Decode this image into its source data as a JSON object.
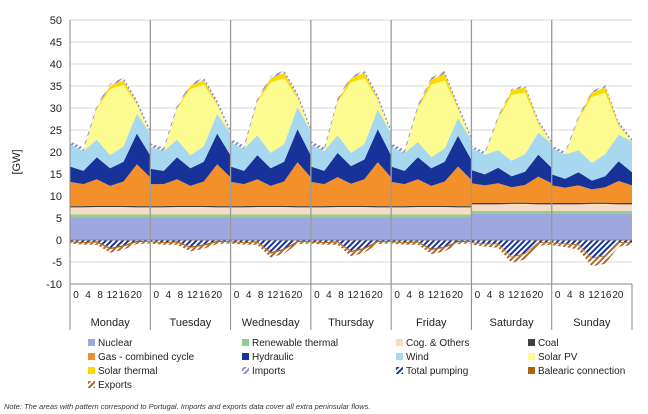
{
  "chart_data": {
    "type": "area",
    "ylabel": "[GW]",
    "ylim": [
      -10,
      50
    ],
    "yticks": [
      -10,
      -5,
      0,
      5,
      10,
      15,
      20,
      25,
      30,
      35,
      40,
      45,
      50
    ],
    "grid": "horizontal",
    "legend_placement": "bottom",
    "days": [
      "Monday",
      "Tuesday",
      "Wednesday",
      "Thursday",
      "Friday",
      "Saturday",
      "Sunday"
    ],
    "hour_ticks": [
      "0",
      "4",
      "8",
      "12",
      "16",
      "20"
    ],
    "series": [
      {
        "name": "Nuclear",
        "color": "#9fa8de",
        "pattern": false,
        "values": [
          [
            5.2,
            5.2,
            5.2,
            5.2,
            5.2,
            5.2,
            5.2
          ],
          [
            5.2,
            5.2,
            5.2,
            5.2,
            5.2,
            5.2,
            5.2
          ],
          [
            5.2,
            5.2,
            5.2,
            5.2,
            5.2,
            5.2,
            5.2
          ],
          [
            5.2,
            5.2,
            5.2,
            5.2,
            5.2,
            5.2,
            5.2
          ],
          [
            5.2,
            5.2,
            5.2,
            5.2,
            5.2,
            5.2,
            5.2
          ],
          [
            6.0,
            6.0,
            6.0,
            6.0,
            6.0,
            6.0,
            6.0
          ],
          [
            6.0,
            6.0,
            6.0,
            6.0,
            6.0,
            6.0,
            6.0
          ]
        ]
      },
      {
        "name": "Renewable thermal",
        "color": "#8fd08f",
        "pattern": false,
        "values": [
          [
            0.6,
            0.6,
            0.6,
            0.6,
            0.6,
            0.6,
            0.6
          ],
          [
            0.6,
            0.6,
            0.6,
            0.6,
            0.6,
            0.6,
            0.6
          ],
          [
            0.6,
            0.6,
            0.6,
            0.6,
            0.6,
            0.6,
            0.6
          ],
          [
            0.6,
            0.6,
            0.6,
            0.6,
            0.6,
            0.6,
            0.6
          ],
          [
            0.6,
            0.6,
            0.6,
            0.6,
            0.6,
            0.6,
            0.6
          ],
          [
            0.6,
            0.6,
            0.6,
            0.6,
            0.6,
            0.6,
            0.6
          ],
          [
            0.6,
            0.6,
            0.6,
            0.6,
            0.6,
            0.6,
            0.6
          ]
        ]
      },
      {
        "name": "Cog. & Others",
        "color": "#f5dcc4",
        "pattern": false,
        "values": [
          [
            1.6,
            1.6,
            1.7,
            1.7,
            1.7,
            1.6,
            1.6
          ],
          [
            1.6,
            1.6,
            1.7,
            1.7,
            1.7,
            1.6,
            1.6
          ],
          [
            1.6,
            1.6,
            1.7,
            1.7,
            1.7,
            1.6,
            1.6
          ],
          [
            1.6,
            1.6,
            1.7,
            1.7,
            1.7,
            1.6,
            1.6
          ],
          [
            1.6,
            1.6,
            1.7,
            1.7,
            1.7,
            1.6,
            1.6
          ],
          [
            1.5,
            1.5,
            1.5,
            1.6,
            1.6,
            1.5,
            1.5
          ],
          [
            1.5,
            1.5,
            1.5,
            1.6,
            1.6,
            1.5,
            1.5
          ]
        ]
      },
      {
        "name": "Coal",
        "color": "#404040",
        "pattern": false,
        "values": [
          [
            0.3,
            0.3,
            0.3,
            0.3,
            0.3,
            0.3,
            0.3
          ],
          [
            0.3,
            0.3,
            0.3,
            0.3,
            0.3,
            0.3,
            0.3
          ],
          [
            0.3,
            0.3,
            0.3,
            0.3,
            0.3,
            0.3,
            0.3
          ],
          [
            0.3,
            0.3,
            0.3,
            0.3,
            0.3,
            0.3,
            0.3
          ],
          [
            0.3,
            0.3,
            0.3,
            0.3,
            0.3,
            0.3,
            0.3
          ],
          [
            0.3,
            0.3,
            0.3,
            0.3,
            0.3,
            0.3,
            0.3
          ],
          [
            0.3,
            0.3,
            0.3,
            0.3,
            0.3,
            0.3,
            0.3
          ]
        ]
      },
      {
        "name": "Gas - combined cycle",
        "color": "#f4902a",
        "pattern": false,
        "values": [
          [
            5.5,
            5.0,
            6.0,
            4.5,
            5.5,
            9.5,
            6.5
          ],
          [
            5.0,
            5.0,
            6.0,
            4.5,
            5.5,
            9.5,
            6.5
          ],
          [
            5.5,
            5.0,
            6.0,
            4.5,
            5.5,
            10.0,
            6.5
          ],
          [
            5.5,
            5.0,
            6.5,
            5.0,
            6.0,
            10.0,
            6.5
          ],
          [
            5.5,
            5.0,
            6.0,
            4.5,
            5.5,
            9.0,
            6.0
          ],
          [
            4.5,
            4.0,
            4.5,
            3.5,
            4.0,
            6.0,
            4.5
          ],
          [
            4.0,
            3.5,
            4.0,
            3.0,
            3.5,
            5.0,
            4.0
          ]
        ]
      },
      {
        "name": "Hydraulic",
        "color": "#17339a",
        "pattern": false,
        "values": [
          [
            3.5,
            3.0,
            5.0,
            4.0,
            4.5,
            7.0,
            5.0
          ],
          [
            3.5,
            3.0,
            5.0,
            4.0,
            4.5,
            7.0,
            5.0
          ],
          [
            3.5,
            3.0,
            5.5,
            4.0,
            4.5,
            7.5,
            5.0
          ],
          [
            3.5,
            3.0,
            5.5,
            4.0,
            4.5,
            7.5,
            5.0
          ],
          [
            3.5,
            3.0,
            5.0,
            4.0,
            4.5,
            7.0,
            4.5
          ],
          [
            3.0,
            2.5,
            3.5,
            2.5,
            3.0,
            5.0,
            3.5
          ],
          [
            2.5,
            2.0,
            3.0,
            2.0,
            2.5,
            4.5,
            3.0
          ]
        ]
      },
      {
        "name": "Wind",
        "color": "#a8d8ef",
        "pattern": false,
        "values": [
          [
            5.0,
            4.5,
            4.0,
            3.0,
            3.5,
            4.5,
            5.0
          ],
          [
            5.0,
            4.5,
            4.0,
            3.0,
            3.5,
            4.5,
            5.0
          ],
          [
            5.5,
            5.0,
            4.5,
            3.5,
            4.0,
            5.0,
            5.5
          ],
          [
            5.0,
            4.5,
            4.0,
            3.0,
            3.5,
            4.5,
            5.0
          ],
          [
            4.5,
            4.0,
            3.5,
            2.5,
            3.0,
            4.0,
            4.5
          ],
          [
            5.0,
            4.5,
            4.0,
            3.5,
            4.0,
            5.0,
            5.5
          ],
          [
            6.0,
            5.5,
            5.0,
            4.0,
            5.0,
            6.0,
            7.0
          ]
        ]
      },
      {
        "name": "Solar PV",
        "color": "#fbfb90",
        "pattern": false,
        "values": [
          [
            0,
            0,
            7.0,
            15.0,
            14.0,
            2.0,
            0
          ],
          [
            0,
            0,
            7.0,
            15.0,
            14.0,
            2.0,
            0
          ],
          [
            0,
            0,
            7.5,
            16.0,
            15.0,
            2.0,
            0
          ],
          [
            0,
            0,
            7.5,
            16.0,
            15.0,
            2.0,
            0
          ],
          [
            0,
            0,
            7.5,
            16.5,
            15.5,
            2.0,
            0
          ],
          [
            0,
            0,
            7.0,
            15.0,
            14.0,
            2.0,
            0
          ],
          [
            0,
            0,
            7.0,
            15.0,
            14.0,
            2.0,
            0
          ]
        ]
      },
      {
        "name": "Solar thermal",
        "color": "#fdd900",
        "pattern": false,
        "values": [
          [
            0,
            0,
            0.2,
            0.8,
            1.0,
            0.3,
            0
          ],
          [
            0,
            0,
            0.2,
            0.8,
            1.0,
            0.3,
            0
          ],
          [
            0,
            0,
            0.3,
            1.0,
            1.2,
            0.4,
            0
          ],
          [
            0,
            0,
            0.3,
            1.0,
            1.2,
            0.4,
            0
          ],
          [
            0,
            0,
            0.3,
            1.2,
            1.5,
            0.4,
            0
          ],
          [
            0,
            0,
            0.3,
            1.0,
            1.2,
            0.4,
            0
          ],
          [
            0,
            0,
            0.3,
            1.0,
            1.2,
            0.4,
            0
          ]
        ]
      },
      {
        "name": "Imports",
        "color": "#8b8fc9",
        "pattern": true,
        "values": [
          [
            0.8,
            0.8,
            0.6,
            0.4,
            0.6,
            0.8,
            0.8
          ],
          [
            0.8,
            0.8,
            0.6,
            0.4,
            0.6,
            0.8,
            0.8
          ],
          [
            0.8,
            0.8,
            0.6,
            0.4,
            0.6,
            0.8,
            0.8
          ],
          [
            0.8,
            0.8,
            0.6,
            0.4,
            0.6,
            0.8,
            0.8
          ],
          [
            0.8,
            0.8,
            0.6,
            0.4,
            0.6,
            0.8,
            0.8
          ],
          [
            0.6,
            0.6,
            0.5,
            0.3,
            0.5,
            0.6,
            0.6
          ],
          [
            0.6,
            0.6,
            0.5,
            0.3,
            0.5,
            0.6,
            0.6
          ]
        ]
      },
      {
        "name": "Total pumping",
        "color": "#17339a",
        "pattern": true,
        "values": [
          [
            -0.3,
            -0.5,
            -0.3,
            -1.8,
            -1.2,
            -0.2,
            -0.3
          ],
          [
            -0.3,
            -0.5,
            -0.3,
            -1.5,
            -1.0,
            -0.2,
            -0.3
          ],
          [
            -0.3,
            -0.5,
            -0.3,
            -2.8,
            -2.0,
            -0.2,
            -0.3
          ],
          [
            -0.3,
            -0.5,
            -0.3,
            -2.5,
            -1.8,
            -0.2,
            -0.3
          ],
          [
            -0.3,
            -0.5,
            -0.3,
            -2.0,
            -1.5,
            -0.2,
            -0.3
          ],
          [
            -0.5,
            -0.8,
            -0.8,
            -3.8,
            -3.0,
            -0.5,
            -0.5
          ],
          [
            -0.5,
            -0.8,
            -1.0,
            -4.0,
            -3.5,
            -0.5,
            -0.5
          ]
        ]
      },
      {
        "name": "Balearic connection",
        "color": "#b35f0a",
        "pattern": false,
        "values": [
          [
            -0.2,
            -0.2,
            -0.3,
            -0.3,
            -0.3,
            -0.3,
            -0.2
          ],
          [
            -0.2,
            -0.2,
            -0.3,
            -0.3,
            -0.3,
            -0.3,
            -0.2
          ],
          [
            -0.2,
            -0.2,
            -0.3,
            -0.3,
            -0.3,
            -0.3,
            -0.2
          ],
          [
            -0.2,
            -0.2,
            -0.3,
            -0.3,
            -0.3,
            -0.3,
            -0.2
          ],
          [
            -0.2,
            -0.2,
            -0.3,
            -0.3,
            -0.3,
            -0.3,
            -0.2
          ],
          [
            -0.2,
            -0.2,
            -0.2,
            -0.2,
            -0.2,
            -0.2,
            -0.2
          ],
          [
            -0.2,
            -0.2,
            -0.2,
            -0.2,
            -0.2,
            -0.2,
            -0.2
          ]
        ]
      },
      {
        "name": "Exports",
        "color": "#a86a2a",
        "pattern": true,
        "values": [
          [
            -0.3,
            -0.4,
            -0.5,
            -0.8,
            -0.7,
            -0.4,
            -0.3
          ],
          [
            -0.3,
            -0.4,
            -0.5,
            -0.8,
            -0.7,
            -0.4,
            -0.3
          ],
          [
            -0.3,
            -0.4,
            -0.5,
            -0.9,
            -0.8,
            -0.4,
            -0.3
          ],
          [
            -0.3,
            -0.4,
            -0.5,
            -0.9,
            -0.8,
            -0.4,
            -0.3
          ],
          [
            -0.3,
            -0.4,
            -0.5,
            -0.9,
            -0.8,
            -0.4,
            -0.3
          ],
          [
            -0.4,
            -0.5,
            -0.8,
            -1.2,
            -1.2,
            -0.6,
            -0.4
          ],
          [
            -0.5,
            -0.6,
            -1.0,
            -1.8,
            -1.7,
            -0.8,
            -0.5
          ]
        ]
      }
    ]
  },
  "footnote": "Note: The areas with pattern correspond to Portugal. Imports and exports data cover all extra peninsular flows."
}
